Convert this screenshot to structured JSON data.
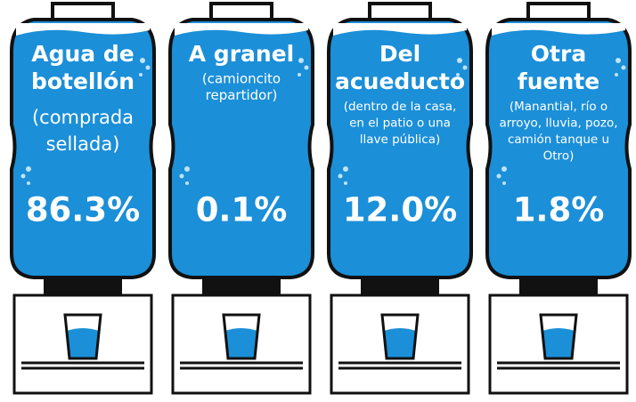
{
  "items": [
    {
      "title": [
        "Agua de",
        "botellón"
      ],
      "subtitle": [
        "(comprada",
        "sellada)"
      ],
      "value": "86.3%"
    },
    {
      "title": [
        "A granel"
      ],
      "subtitle": [
        "(camioncito",
        "repartidor)"
      ],
      "value": "0.1%"
    },
    {
      "title": [
        "Del",
        "acueducto"
      ],
      "subtitle": [
        "(dentro de la casa,",
        "en el patio o una",
        "llave pública)"
      ],
      "value": "12.0%"
    },
    {
      "title": [
        "Otra",
        "fuente"
      ],
      "subtitle": [
        "(Manantial, río o",
        "arroyo, lluvia, pozo,",
        "camión tanque u",
        "Otro)"
      ],
      "value": "1.8%"
    }
  ]
}
